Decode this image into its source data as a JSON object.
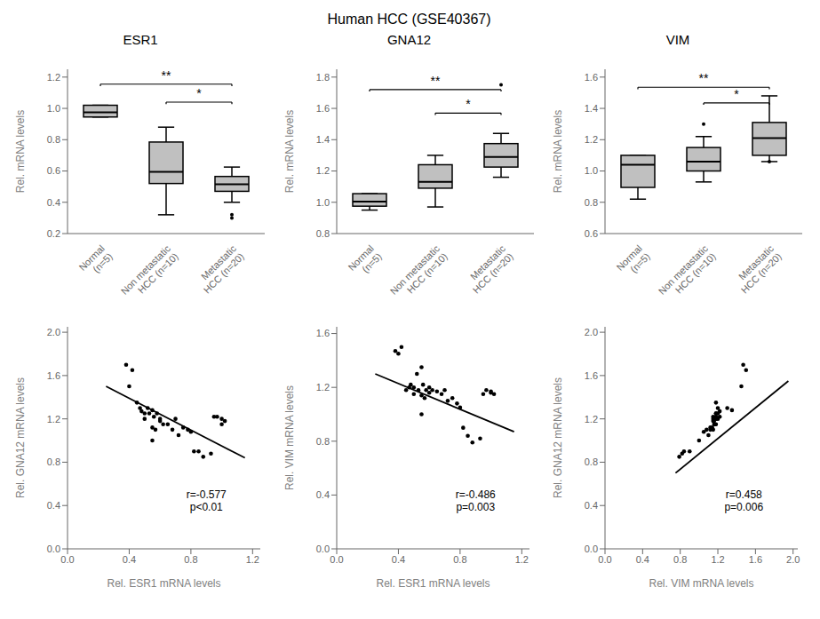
{
  "title": "Human HCC (GSE40367)",
  "chart_data": [
    {
      "type": "box",
      "title": "ESR1",
      "ylabel": "Rel. mRNA levels",
      "categories": [
        "Normal\n(n=5)",
        "Non metastatic\nHCC (n=10)",
        "Metastatic\nHCC (n=20)"
      ],
      "color": "#c0c0c0",
      "ylim": [
        0.2,
        1.25
      ],
      "yticks": [
        0.2,
        0.4,
        0.6,
        0.8,
        {
          "value": 1,
          "label": "1.0"
        },
        1.2
      ],
      "boxes": [
        {
          "med": 0.975,
          "q1": 0.945,
          "q3": 1.02,
          "whislo": 0.945,
          "whishi": 1.02,
          "fliers": []
        },
        {
          "med": 0.595,
          "q1": 0.52,
          "q3": 0.785,
          "whislo": 0.32,
          "whishi": 0.88,
          "fliers": []
        },
        {
          "med": 0.515,
          "q1": 0.47,
          "q3": 0.565,
          "whislo": 0.4,
          "whishi": 0.625,
          "fliers": [
            0.3,
            0.32
          ]
        }
      ],
      "annotations": [
        {
          "text": "**",
          "from": "Normal\n(n=5)",
          "to": "Metastatic\nHCC (n=20)",
          "y": 1.155
        },
        {
          "text": "*",
          "from": "Non metastatic\nHCC (n=10)",
          "to": "Metastatic\nHCC (n=20)",
          "y": 1.04
        }
      ]
    },
    {
      "type": "box",
      "title": "GNA12",
      "ylabel": "Rel. mRNA levels",
      "categories": [
        "Normal\n(n=5)",
        "Non metastatic\nHCC (n=10)",
        "Metastatic\nHCC (n=20)"
      ],
      "color": "#c0c0c0",
      "ylim": [
        0.8,
        1.85
      ],
      "yticks": [
        0.8,
        {
          "value": 1,
          "label": "1.0"
        },
        1.2,
        1.4,
        1.6,
        1.8
      ],
      "boxes": [
        {
          "med": 1.005,
          "q1": 0.975,
          "q3": 1.055,
          "whislo": 0.95,
          "whishi": 1.055,
          "fliers": []
        },
        {
          "med": 1.13,
          "q1": 1.09,
          "q3": 1.24,
          "whislo": 0.97,
          "whishi": 1.3,
          "fliers": []
        },
        {
          "med": 1.29,
          "q1": 1.225,
          "q3": 1.375,
          "whislo": 1.16,
          "whishi": 1.44,
          "fliers": [
            1.75
          ]
        }
      ],
      "annotations": [
        {
          "text": "**",
          "from": "Normal\n(n=5)",
          "to": "Metastatic\nHCC (n=20)",
          "y": 1.72
        },
        {
          "text": "*",
          "from": "Non metastatic\nHCC (n=10)",
          "to": "Metastatic\nHCC (n=20)",
          "y": 1.57
        }
      ]
    },
    {
      "type": "box",
      "title": "VIM",
      "ylabel": "Rel. mRNA levels",
      "categories": [
        "Normal\n(n=5)",
        "Non metastatic\nHCC (n=10)",
        "Metastatic\nHCC (n=20)"
      ],
      "color": "#c0c0c0",
      "ylim": [
        0.6,
        1.65
      ],
      "yticks": [
        0.6,
        0.8,
        {
          "value": 1,
          "label": "1.0"
        },
        1.2,
        1.4,
        1.6
      ],
      "boxes": [
        {
          "med": 1.04,
          "q1": 0.895,
          "q3": 1.1,
          "whislo": 0.82,
          "whishi": 1.1,
          "fliers": []
        },
        {
          "med": 1.06,
          "q1": 1.0,
          "q3": 1.15,
          "whislo": 0.93,
          "whishi": 1.22,
          "fliers": [
            1.3
          ]
        },
        {
          "med": 1.21,
          "q1": 1.1,
          "q3": 1.31,
          "whislo": 1.06,
          "whishi": 1.48,
          "fliers": [
            1.06
          ]
        }
      ],
      "annotations": [
        {
          "text": "**",
          "from": "Normal\n(n=5)",
          "to": "Metastatic\nHCC (n=20)",
          "y": 1.535
        },
        {
          "text": "*",
          "from": "Non metastatic\nHCC (n=10)",
          "to": "Metastatic\nHCC (n=20)",
          "y": 1.435
        }
      ]
    },
    {
      "type": "scatter",
      "xlabel": "Rel. ESR1 mRNA levels",
      "ylabel": "Rel. GNA12 mRNA levels",
      "xlim": [
        0,
        1.25
      ],
      "ylim": [
        0,
        2.05
      ],
      "xticks": [
        {
          "value": 0,
          "label": "0.0"
        },
        0.4,
        0.8,
        1.2
      ],
      "yticks": [
        {
          "value": 0,
          "label": "0.0"
        },
        0.4,
        0.8,
        1.2,
        1.6,
        {
          "value": 2,
          "label": "2.0"
        }
      ],
      "color": "#000000",
      "annotation": "r=-0.577\np<0.01",
      "x": [
        0.95,
        1.0,
        1.02,
        1.0,
        0.97,
        0.93,
        0.88,
        0.85,
        0.52,
        0.55,
        0.58,
        0.6,
        0.56,
        0.5,
        0.48,
        0.62,
        0.65,
        0.68,
        0.72,
        0.75,
        0.7,
        0.78,
        0.8,
        0.82,
        0.45,
        0.42,
        0.47,
        0.5,
        0.53,
        0.55,
        0.38,
        0.4,
        0.6,
        0.55,
        0.57
      ],
      "y": [
        1.22,
        1.2,
        1.18,
        1.15,
        1.22,
        0.88,
        0.85,
        0.9,
        1.3,
        1.28,
        1.25,
        1.2,
        1.22,
        1.25,
        1.27,
        1.15,
        1.15,
        1.1,
        1.05,
        1.12,
        1.2,
        1.1,
        1.08,
        0.9,
        1.35,
        1.65,
        1.3,
        1.2,
        1.25,
        1.0,
        1.7,
        1.5,
        1.18,
        1.12,
        1.1
      ],
      "trend": {
        "x": [
          0.25,
          1.15
        ],
        "y": [
          1.5,
          0.84
        ],
        "color": "#000000"
      }
    },
    {
      "type": "scatter",
      "xlabel": "Rel. ESR1 mRNA levels",
      "ylabel": "Rel. VIM mRNA levels",
      "xlim": [
        0,
        1.25
      ],
      "ylim": [
        0,
        1.65
      ],
      "xticks": [
        {
          "value": 0,
          "label": "0.0"
        },
        0.4,
        0.8,
        1.2
      ],
      "yticks": [
        {
          "value": 0,
          "label": "0.0"
        },
        0.4,
        0.8,
        1.2,
        1.6
      ],
      "color": "#000000",
      "annotation": "r=-0.486\np=0.003",
      "x": [
        0.95,
        1.0,
        1.02,
        1.0,
        0.97,
        0.93,
        0.88,
        0.85,
        0.52,
        0.55,
        0.58,
        0.6,
        0.56,
        0.5,
        0.48,
        0.62,
        0.65,
        0.68,
        0.72,
        0.75,
        0.7,
        0.78,
        0.8,
        0.82,
        0.45,
        0.42,
        0.47,
        0.5,
        0.53,
        0.55,
        0.38,
        0.4,
        0.6,
        0.55,
        0.57
      ],
      "y": [
        1.15,
        1.17,
        1.15,
        1.16,
        1.18,
        0.82,
        0.79,
        0.84,
        1.3,
        1.35,
        1.18,
        1.2,
        1.22,
        1.2,
        1.22,
        1.18,
        1.17,
        1.15,
        1.1,
        1.12,
        1.18,
        1.08,
        1.05,
        0.9,
        1.18,
        1.5,
        1.2,
        1.15,
        1.18,
        1.0,
        1.47,
        1.45,
        1.16,
        1.14,
        1.12
      ],
      "trend": {
        "x": [
          0.25,
          1.15
        ],
        "y": [
          1.3,
          0.87
        ],
        "color": "#000000"
      }
    },
    {
      "type": "scatter",
      "xlabel": "Rel. VIM mRNA levels",
      "ylabel": "Rel. GNA12 mRNA levels",
      "xlim": [
        0,
        2.05
      ],
      "ylim": [
        0,
        2.05
      ],
      "xticks": [
        {
          "value": 0,
          "label": "0.0"
        },
        0.4,
        0.8,
        1.2,
        1.6,
        {
          "value": 2,
          "label": "2.0"
        }
      ],
      "yticks": [
        {
          "value": 0,
          "label": "0.0"
        },
        0.4,
        0.8,
        1.2,
        1.6,
        {
          "value": 2,
          "label": "2.0"
        }
      ],
      "color": "#000000",
      "annotation": "r=0.458\np=0.006",
      "x": [
        1.15,
        1.17,
        1.15,
        1.16,
        1.18,
        0.82,
        0.79,
        0.84,
        1.3,
        1.35,
        1.18,
        1.2,
        1.22,
        1.2,
        1.22,
        1.18,
        1.17,
        1.15,
        1.1,
        1.12,
        1.18,
        1.08,
        1.05,
        0.9,
        1.18,
        1.5,
        1.2,
        1.15,
        1.18,
        1.0,
        1.47,
        1.45,
        1.16,
        1.14,
        1.12
      ],
      "y": [
        1.22,
        1.2,
        1.18,
        1.15,
        1.22,
        0.88,
        0.85,
        0.9,
        1.3,
        1.28,
        1.25,
        1.2,
        1.22,
        1.25,
        1.27,
        1.15,
        1.15,
        1.1,
        1.05,
        1.12,
        1.2,
        1.1,
        1.08,
        0.9,
        1.35,
        1.65,
        1.3,
        1.2,
        1.25,
        1.0,
        1.7,
        1.5,
        1.18,
        1.12,
        1.1
      ],
      "trend": {
        "x": [
          0.75,
          1.95
        ],
        "y": [
          0.7,
          1.55
        ],
        "color": "#000000"
      }
    }
  ]
}
